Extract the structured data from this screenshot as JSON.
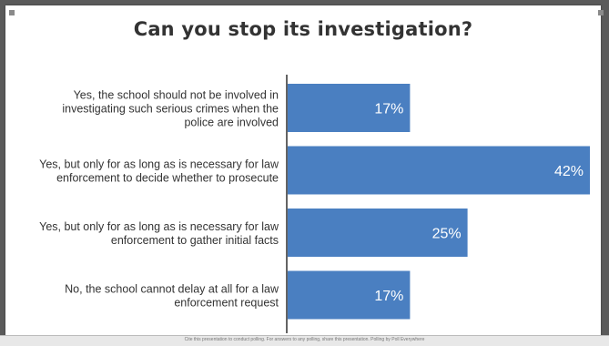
{
  "chart_data": {
    "type": "bar",
    "orientation": "horizontal",
    "title": "Can you stop its investigation?",
    "categories": [
      [
        "Yes, the school should not be involved in",
        "investigating such serious crimes when the",
        "police are involved"
      ],
      [
        "Yes, but only for as long as is necessary for law",
        "enforcement to decide whether to prosecute"
      ],
      [
        "Yes, but only for as long as is necessary for law",
        "enforcement to gather initial facts"
      ],
      [
        "No, the school cannot delay at all for a law",
        "enforcement request"
      ]
    ],
    "values": [
      17,
      42,
      25,
      17
    ],
    "value_labels": [
      "17%",
      "42%",
      "25%",
      "17%"
    ],
    "xlim": [
      0,
      42
    ],
    "bar_color": "#4a7fc1",
    "label_color": "#ffffff",
    "grid": false,
    "legend": "none"
  },
  "footer": {
    "text": "Cite this presentation to conduct polling. For answers to any polling, share this presentation. Polling by Poll Everywhere"
  }
}
